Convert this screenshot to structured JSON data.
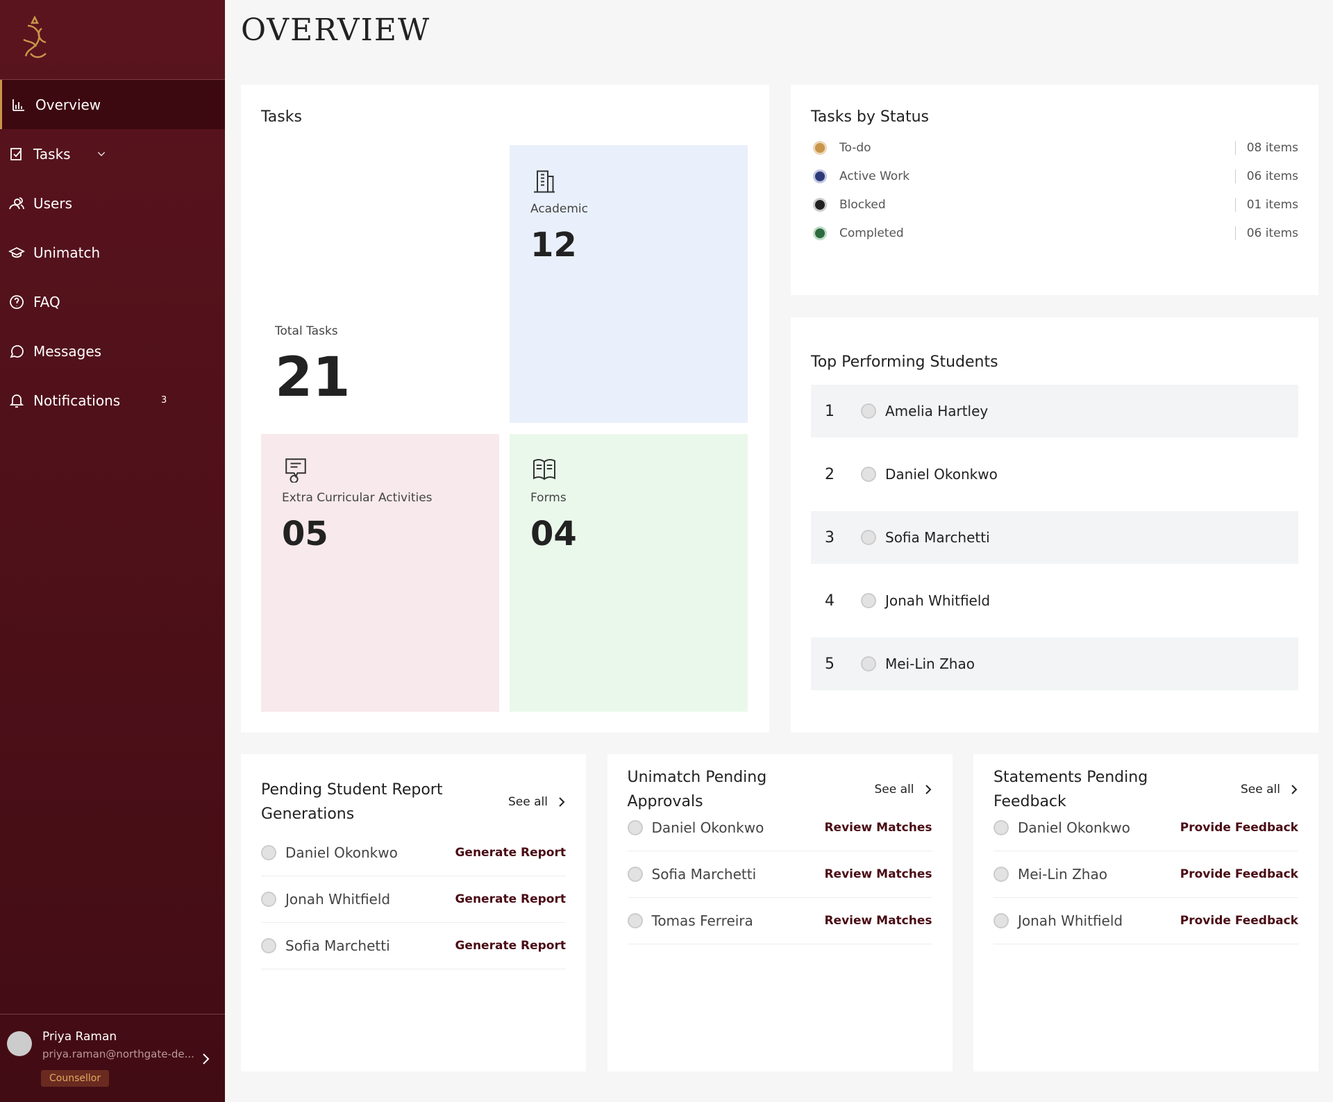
{
  "sidebar": {
    "nav": [
      {
        "label": "Overview"
      },
      {
        "label": "Tasks"
      },
      {
        "label": "Users"
      },
      {
        "label": "Unimatch"
      },
      {
        "label": "FAQ"
      },
      {
        "label": "Messages"
      },
      {
        "label": "Notifications",
        "badge": "3"
      }
    ],
    "user": {
      "name": "Priya Raman",
      "email": "priya.raman@northgate-de...",
      "role": "Counsellor"
    }
  },
  "header": {
    "title": "OVERVIEW"
  },
  "tasks": {
    "title": "Tasks",
    "total": {
      "label": "Total Tasks",
      "value": "21"
    },
    "tiles": [
      {
        "label": "Academic",
        "value": "12"
      },
      {
        "label": "Extra Curricular Activities",
        "value": "05"
      },
      {
        "label": "Forms",
        "value": "04"
      }
    ]
  },
  "status": {
    "title": "Tasks by Status",
    "items": [
      {
        "label": "To-do",
        "count": "08 items"
      },
      {
        "label": "Active Work",
        "count": "06 items"
      },
      {
        "label": "Blocked",
        "count": "01 items"
      },
      {
        "label": "Completed",
        "count": "06 items"
      }
    ]
  },
  "top_students": {
    "title": "Top Performing Students",
    "rows": [
      {
        "rank": "1",
        "name": "Amelia Hartley"
      },
      {
        "rank": "2",
        "name": "Daniel Okonkwo"
      },
      {
        "rank": "3",
        "name": "Sofia Marchetti"
      },
      {
        "rank": "4",
        "name": "Jonah Whitfield"
      },
      {
        "rank": "5",
        "name": "Mei-Lin Zhao"
      }
    ]
  },
  "panels": [
    {
      "title": "Pending Student Report Generations",
      "link": "See all",
      "rows": [
        {
          "name": "Daniel Okonkwo",
          "action": "Generate Report"
        },
        {
          "name": "Jonah Whitfield",
          "action": "Generate Report"
        },
        {
          "name": "Sofia Marchetti",
          "action": "Generate Report"
        }
      ]
    },
    {
      "title": "Unimatch Pending Approvals",
      "link": "See all",
      "rows": [
        {
          "name": "Daniel Okonkwo",
          "action": "Review Matches"
        },
        {
          "name": "Sofia Marchetti",
          "action": "Review Matches"
        },
        {
          "name": "Tomas Ferreira",
          "action": "Review Matches"
        }
      ]
    },
    {
      "title": "Statements Pending Feedback",
      "link": "See all",
      "rows": [
        {
          "name": "Daniel Okonkwo",
          "action": "Provide Feedback"
        },
        {
          "name": "Mei-Lin Zhao",
          "action": "Provide Feedback"
        },
        {
          "name": "Jonah Whitfield",
          "action": "Provide Feedback"
        }
      ]
    }
  ]
}
